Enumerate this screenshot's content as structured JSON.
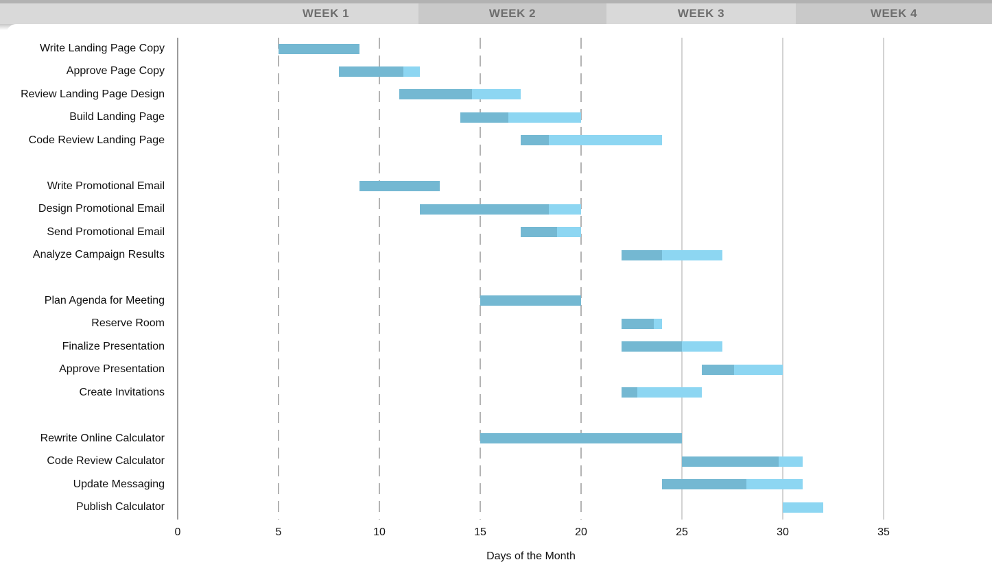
{
  "colors": {
    "complete": "#74b8d2",
    "remaining": "#8dd6f2",
    "header_light": "#d9d9d9",
    "header_dark": "#c9c9c9",
    "header_top_strip": "#b2b2b2",
    "header_text": "#6e6e6e",
    "axis_line": "#9b9b9b",
    "grid_dashed": "#b3b3b3",
    "grid_solid": "#d3d3d3",
    "text": "#111111"
  },
  "chart_data": {
    "type": "bar",
    "subtype": "gantt",
    "title": "",
    "xlabel": "Days of the Month",
    "x_ticks": [
      0,
      5,
      10,
      15,
      20,
      25,
      30,
      35
    ],
    "xlim": [
      0,
      40.4
    ],
    "grid": {
      "dashed_days": [
        5,
        10,
        15,
        20
      ],
      "solid_days": [
        25,
        30,
        35
      ]
    },
    "legend": "none",
    "bar_styles": [
      "complete (darker blue)",
      "remaining (lighter blue)"
    ],
    "week_header": [
      "WEEK 1",
      "WEEK 2",
      "WEEK 3",
      "WEEK 4"
    ],
    "sections": [
      {
        "tasks": [
          {
            "name": "Write Landing Page Copy",
            "start": 5,
            "end": 9,
            "completed_until": 9
          },
          {
            "name": "Approve Page Copy",
            "start": 8,
            "end": 12,
            "completed_until": 11.2
          },
          {
            "name": "Review Landing Page Design",
            "start": 11,
            "end": 17,
            "completed_until": 14.6
          },
          {
            "name": "Build Landing Page",
            "start": 14,
            "end": 20,
            "completed_until": 16.4
          },
          {
            "name": "Code Review Landing Page",
            "start": 17,
            "end": 24,
            "completed_until": 18.4
          }
        ]
      },
      {
        "tasks": [
          {
            "name": "Write Promotional Email",
            "start": 9,
            "end": 13,
            "completed_until": 13
          },
          {
            "name": "Design Promotional Email",
            "start": 12,
            "end": 20,
            "completed_until": 18.4
          },
          {
            "name": "Send Promotional Email",
            "start": 17,
            "end": 20,
            "completed_until": 18.8
          },
          {
            "name": "Analyze Campaign Results",
            "start": 22,
            "end": 27,
            "completed_until": 24
          }
        ]
      },
      {
        "tasks": [
          {
            "name": "Plan Agenda for Meeting",
            "start": 15,
            "end": 20,
            "completed_until": 20
          },
          {
            "name": "Reserve Room",
            "start": 22,
            "end": 24,
            "completed_until": 23.6
          },
          {
            "name": "Finalize Presentation",
            "start": 22,
            "end": 27,
            "completed_until": 25
          },
          {
            "name": "Approve Presentation",
            "start": 26,
            "end": 30,
            "completed_until": 27.6
          },
          {
            "name": "Create Invitations",
            "start": 22,
            "end": 26,
            "completed_until": 22.8
          }
        ]
      },
      {
        "tasks": [
          {
            "name": "Rewrite Online Calculator",
            "start": 15,
            "end": 25,
            "completed_until": 25
          },
          {
            "name": "Code Review Calculator",
            "start": 25,
            "end": 31,
            "completed_until": 29.8
          },
          {
            "name": "Update Messaging",
            "start": 24,
            "end": 31,
            "completed_until": 28.2
          },
          {
            "name": "Publish Calculator",
            "start": 30,
            "end": 32,
            "completed_until": 30
          }
        ]
      }
    ]
  }
}
